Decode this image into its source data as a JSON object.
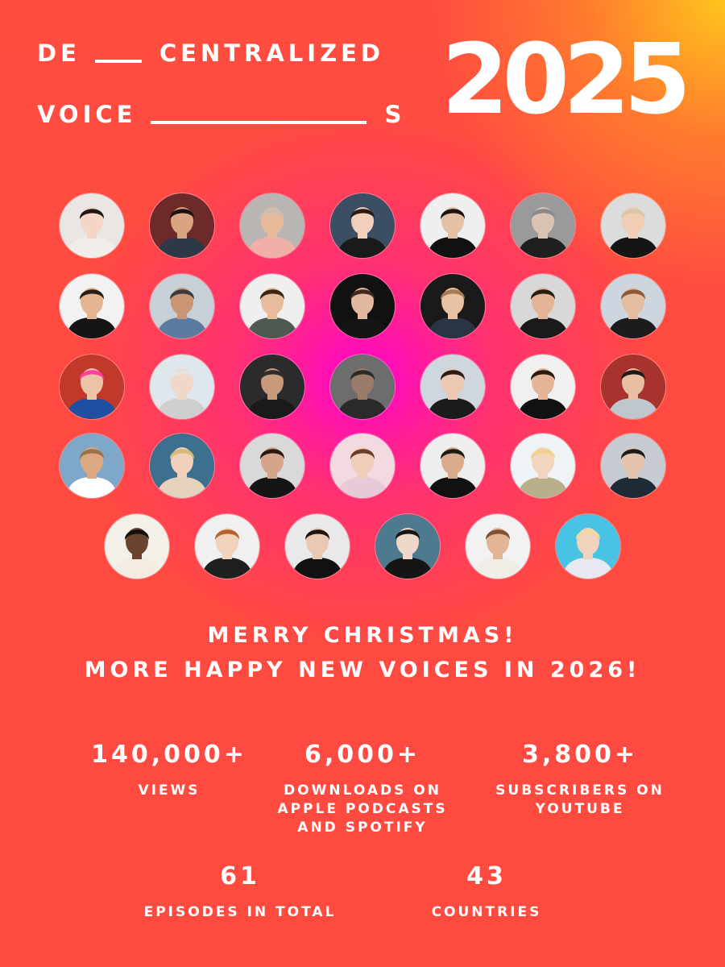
{
  "header": {
    "line1_left": "DE",
    "line1_right": "CENTRALIZED",
    "line2_left": "VOICE",
    "line2_right": "S",
    "year": "2025"
  },
  "greeting": {
    "line1": "MERRY CHRISTMAS!",
    "line2": "MORE HAPPY NEW VOICES IN 2026!"
  },
  "stats": [
    {
      "value": "140,000+",
      "label": "VIEWS"
    },
    {
      "value": "6,000+",
      "label_lines": [
        "DOWNLOADS ON",
        "APPLE PODCASTS",
        "AND SPOTIFY"
      ]
    },
    {
      "value": "3,800+",
      "label_lines": [
        "SUBSCRIBERS ON",
        "YOUTUBE"
      ]
    },
    {
      "value": "61",
      "label": "EPISODES IN TOTAL"
    },
    {
      "value": "43",
      "label": "COUNTRIES"
    }
  ],
  "avatars": {
    "count": 34,
    "rows": [
      7,
      7,
      7,
      7,
      6
    ],
    "backgrounds": [
      "#e9e6e3",
      "#6e2a2a",
      "#b9b5b2",
      "#3b4e64",
      "#efefef",
      "#9a9a9a",
      "#dcdcdc",
      "#f2f2f2",
      "#c9cfd6",
      "#efefef",
      "#111111",
      "#1a1a1a",
      "#d8d8d8",
      "#cdd6df",
      "#c0392b",
      "#dfe6ec",
      "#2b2b2b",
      "#6d6d6d",
      "#cfd6dd",
      "#f0f0f0",
      "#a8322d",
      "#7fa7c9",
      "#3d6f8f",
      "#d9d9d9",
      "#f3d9e0",
      "#eeeeee",
      "#eef3f6",
      "#c6ccd2",
      "#f3f0ea",
      "#f0f0f0",
      "#e9e9e9",
      "#4d7a8e",
      "#f2f2f2",
      "#49c3e3"
    ],
    "skin": [
      "#f3d6c6",
      "#d9a47f",
      "#e8b89a",
      "#f0d0bc",
      "#e4c0a4",
      "#d9c4b4",
      "#f0cdb4",
      "#e3b592",
      "#c99574",
      "#e7bc9d",
      "#e2b9a0",
      "#e9c2a4",
      "#e3b496",
      "#e4bca0",
      "#edc3a8",
      "#f1d7c8",
      "#c79a7c",
      "#9a7a68",
      "#ecc7b2",
      "#e3b596",
      "#e9bfa4",
      "#dba883",
      "#f0d0ba",
      "#d4a58a",
      "#f0cdb9",
      "#d9aa8b",
      "#f2d4bf",
      "#e6c3ac",
      "#6b4430",
      "#f0d2bd",
      "#e9c9b3",
      "#f0d8c8",
      "#e2b596",
      "#f1d2bd"
    ],
    "hair": [
      "#1f1712",
      "#1c120d",
      "#c9bfb5",
      "#2a1c14",
      "#1a1310",
      "#8a8a8a",
      "#d9c6a6",
      "#2b1d14",
      "#3a3a3a",
      "#3a2616",
      "#3d2a1a",
      "#a47b52",
      "#2a1c12",
      "#8b5a33",
      "#ff3fa4",
      "#e3e3e3",
      "#2d2d2d",
      "#2a2a2a",
      "#2b1d15",
      "#2b1b12",
      "#1f1a17",
      "#9b7347",
      "#d9b978",
      "#2a1a12",
      "#6a3f2a",
      "#1e1a17",
      "#f2d08a",
      "#1c1c1c",
      "#111111",
      "#b5622f",
      "#1b1410",
      "#151515",
      "#7a5236",
      "#f1d9a5"
    ],
    "shirt": [
      "#f2ede8",
      "#2f3846",
      "#f0b0a8",
      "#1a1a1a",
      "#111111",
      "#1f1f1f",
      "#151515",
      "#151515",
      "#5a7aa0",
      "#4e5a50",
      "#151515",
      "#2b3443",
      "#1a1a1a",
      "#1c1c1c",
      "#1f4fa0",
      "#cfcfcf",
      "#1a1a1a",
      "#2a2a2a",
      "#1b1b1b",
      "#111111",
      "#bfc6cc",
      "#ffffff",
      "#e4d2bc",
      "#151515",
      "#e8c9d7",
      "#111111",
      "#b8b08a",
      "#1e2a36",
      "#f3ece2",
      "#1f1f1f",
      "#111111",
      "#151515",
      "#f0ede6",
      "#e8e8f0"
    ]
  }
}
